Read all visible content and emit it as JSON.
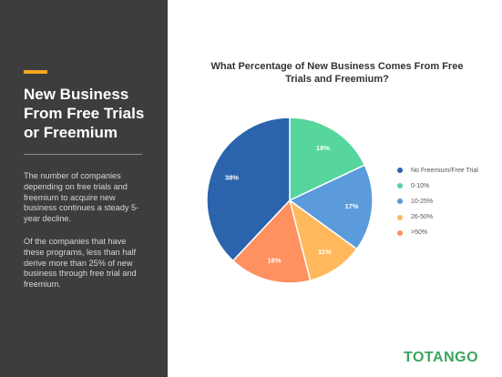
{
  "sidebar": {
    "headline_lines": [
      "New Business",
      "From Free Trials",
      "or Freemium"
    ],
    "paragraph_1": "The number of companies depending on free trials and freemium to acquire new business continues a steady 5-year decline.",
    "paragraph_2": "Of the companies that have these programs, less than half derive more than 25% of new business through free trial and freemium.",
    "accent_color": "#f5a623"
  },
  "brand": {
    "name": "TOTANGO",
    "color": "#3aa55d"
  },
  "chart_data": {
    "type": "pie",
    "title": "What Percentage of New Business Comes From Free Trials and Freemium?",
    "slices": [
      {
        "label": "0-10%",
        "value": 18,
        "value_label": "18%",
        "color": "#56d69c"
      },
      {
        "label": "10-25%",
        "value": 17,
        "value_label": "17%",
        "color": "#5b9bdc"
      },
      {
        "label": "26-50%",
        "value": 11,
        "value_label": "11%",
        "color": "#ffb95c"
      },
      {
        "label": ">50%",
        "value": 16,
        "value_label": "16%",
        "color": "#ff9060"
      },
      {
        "label": "No Freemium/Free Trial",
        "value": 38,
        "value_label": "38%",
        "color": "#2b64ad"
      }
    ],
    "legend": {
      "placement": "right",
      "order": [
        "No Freemium/Free Trial",
        "0-10%",
        "10-25%",
        "26-50%",
        ">50%"
      ]
    }
  }
}
